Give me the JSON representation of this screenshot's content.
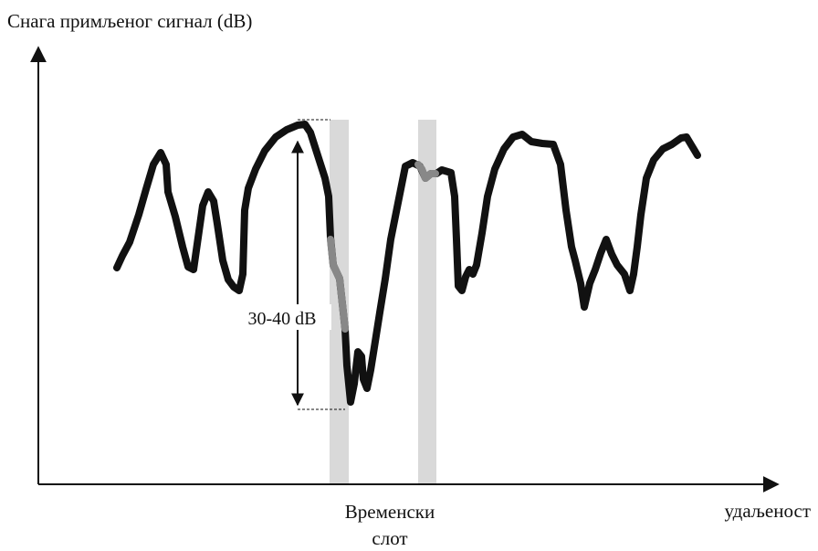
{
  "labels": {
    "y_axis": "Снага примљеног сигнал (dB)",
    "x_axis": "удаљеност",
    "fade_depth": "30-40 dB",
    "time_slot_line1": "Временски",
    "time_slot_line2": "слот"
  },
  "colors": {
    "signal": "#111111",
    "slot_fill": "#d9d9d9",
    "highlight_segment": "#888888",
    "axis": "#111111"
  }
}
